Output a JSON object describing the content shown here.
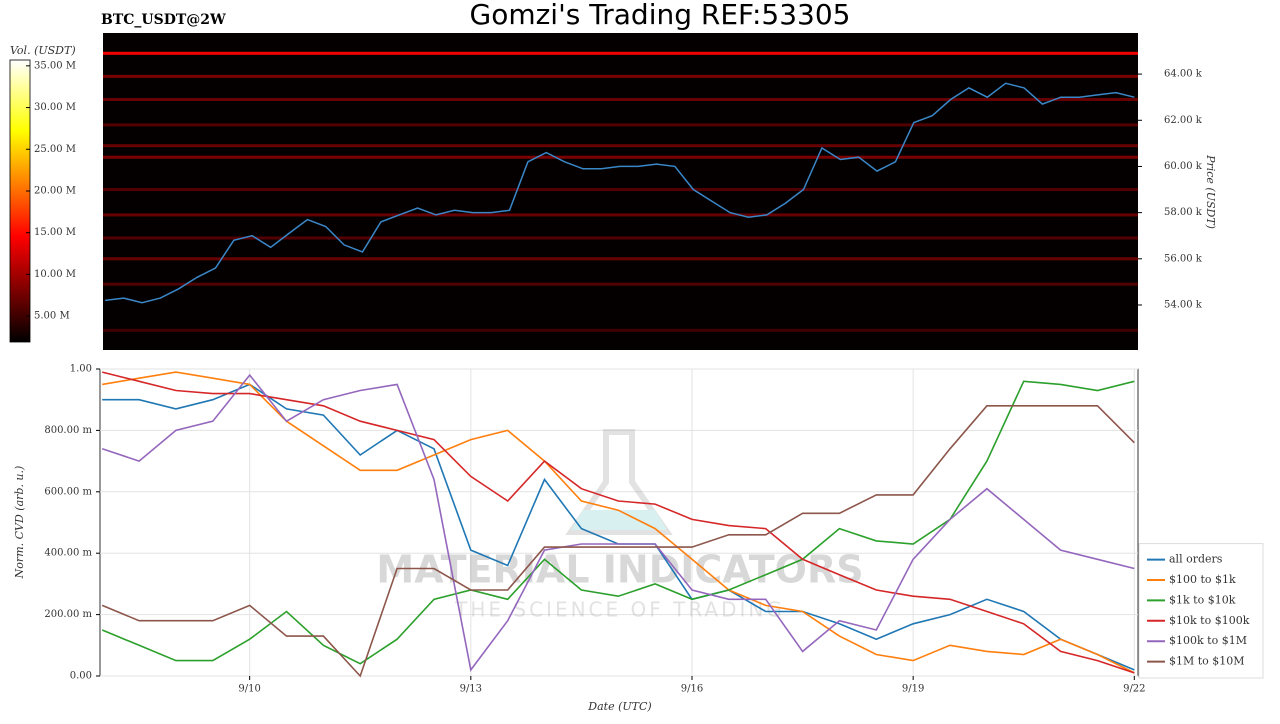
{
  "chart_data": [
    {
      "type": "heatmap",
      "title": "Gomzi's Trading REF:53305",
      "subtitle": "BTC_USDT@2W",
      "y_label": "Price (USDT)",
      "x": [
        8.0,
        8.25,
        8.5,
        8.75,
        9.0,
        9.25,
        9.5,
        9.75,
        10.0,
        10.25,
        10.5,
        10.75,
        11.0,
        11.25,
        11.5,
        11.75,
        12.0,
        12.25,
        12.5,
        12.75,
        13.0,
        13.25,
        13.5,
        13.75,
        14.0,
        14.25,
        14.5,
        14.75,
        15.0,
        15.25,
        15.5,
        15.75,
        16.0,
        16.25,
        16.5,
        16.75,
        17.0,
        17.25,
        17.5,
        17.75,
        18.0,
        18.25,
        18.5,
        18.75,
        19.0,
        19.25,
        19.5,
        19.75,
        20.0,
        20.25,
        20.5,
        20.75,
        21.0,
        21.25,
        21.5,
        21.75,
        22.0
      ],
      "xlim": [
        7.97,
        22.05
      ],
      "price": {
        "color": "#3a87c8",
        "values": [
          54200,
          54300,
          54100,
          54300,
          54700,
          55200,
          55600,
          56800,
          57000,
          56500,
          57100,
          57700,
          57400,
          56600,
          56300,
          57600,
          57900,
          58200,
          57900,
          58100,
          58000,
          58000,
          58100,
          60200,
          60600,
          60200,
          59900,
          59900,
          60000,
          60000,
          60100,
          60000,
          59000,
          58500,
          58000,
          57800,
          57900,
          58400,
          59000,
          60800,
          60300,
          60400,
          59800,
          60200,
          61900,
          62200,
          62900,
          63400,
          63000,
          63600,
          63400,
          62700,
          63000,
          63000,
          63100,
          63200,
          63000
        ]
      },
      "ylim": [
        52050,
        65780
      ],
      "yticks": [
        {
          "value": 54000,
          "label": "54.00 k"
        },
        {
          "value": 56000,
          "label": "56.00 k"
        },
        {
          "value": 58000,
          "label": "58.00 k"
        },
        {
          "value": 60000,
          "label": "60.00 k"
        },
        {
          "value": 62000,
          "label": "62.00 k"
        },
        {
          "value": 64000,
          "label": "64.00 k"
        }
      ],
      "levels": [
        64900,
        63900,
        62900,
        61800,
        60900,
        60400,
        59000,
        57900,
        56900,
        56000,
        54900,
        52900
      ],
      "volumes": [
        14000000,
        8000000,
        7000000,
        6000000,
        7000000,
        8000000,
        6000000,
        7000000,
        6000000,
        7000000,
        6000000,
        5000000
      ],
      "colorbar": {
        "label": "Vol. (USDT)",
        "lim": [
          1900000,
          35700000
        ],
        "ticks": [
          {
            "value": 5000000,
            "label": "5.00 M"
          },
          {
            "value": 10000000,
            "label": "10.00 M"
          },
          {
            "value": 15000000,
            "label": "15.00 M"
          },
          {
            "value": 20000000,
            "label": "20.00 M"
          },
          {
            "value": 25000000,
            "label": "25.00 M"
          },
          {
            "value": 30000000,
            "label": "30.00 M"
          },
          {
            "value": 35000000,
            "label": "35.00 M"
          }
        ]
      }
    },
    {
      "type": "line",
      "x_label": "Date (UTC)",
      "y_label": "Norm. CVD (arb. u.)",
      "x": [
        8.0,
        8.5,
        9.0,
        9.5,
        10.0,
        10.5,
        11.0,
        11.5,
        12.0,
        12.5,
        13.0,
        13.5,
        14.0,
        14.5,
        15.0,
        15.5,
        16.0,
        16.5,
        17.0,
        17.5,
        18.0,
        18.5,
        19.0,
        19.5,
        20.0,
        20.5,
        21.0,
        21.5,
        22.0
      ],
      "xlim": [
        7.97,
        22.05
      ],
      "xticks": [
        {
          "value": 10,
          "label": "9/10"
        },
        {
          "value": 13,
          "label": "9/13"
        },
        {
          "value": 16,
          "label": "9/16"
        },
        {
          "value": 19,
          "label": "9/19"
        },
        {
          "value": 22,
          "label": "9/22"
        }
      ],
      "ylim": [
        0,
        1
      ],
      "yticks": [
        {
          "value": 0,
          "label": "0.00"
        },
        {
          "value": 0.2,
          "label": "200.00 m"
        },
        {
          "value": 0.4,
          "label": "400.00 m"
        },
        {
          "value": 0.6,
          "label": "600.00 m"
        },
        {
          "value": 0.8,
          "label": "800.00 m"
        },
        {
          "value": 1,
          "label": "1.00"
        }
      ],
      "grid": true,
      "legend": "lower right",
      "watermark": {
        "title": "MATERIAL INDICATORS",
        "subtitle": "THE SCIENCE OF TRADING"
      },
      "series": [
        {
          "name": "all orders",
          "color": "#1f77b4",
          "values": [
            0.9,
            0.9,
            0.87,
            0.9,
            0.95,
            0.87,
            0.85,
            0.72,
            0.8,
            0.74,
            0.41,
            0.36,
            0.64,
            0.48,
            0.43,
            0.43,
            0.25,
            0.28,
            0.21,
            0.21,
            0.17,
            0.12,
            0.17,
            0.2,
            0.25,
            0.21,
            0.12,
            0.07,
            0.02
          ]
        },
        {
          "name": "$100 to $1k",
          "color": "#ff7f0e",
          "values": [
            0.95,
            0.97,
            0.99,
            0.97,
            0.95,
            0.83,
            0.75,
            0.67,
            0.67,
            0.72,
            0.77,
            0.8,
            0.7,
            0.57,
            0.54,
            0.48,
            0.38,
            0.28,
            0.23,
            0.21,
            0.13,
            0.07,
            0.05,
            0.1,
            0.08,
            0.07,
            0.12,
            0.07,
            0.01
          ]
        },
        {
          "name": "$1k to $10k",
          "color": "#2ca02c",
          "values": [
            0.15,
            0.1,
            0.05,
            0.05,
            0.12,
            0.21,
            0.1,
            0.04,
            0.12,
            0.25,
            0.28,
            0.25,
            0.38,
            0.28,
            0.26,
            0.3,
            0.25,
            0.28,
            0.33,
            0.38,
            0.48,
            0.44,
            0.43,
            0.51,
            0.7,
            0.96,
            0.95,
            0.93,
            0.96
          ]
        },
        {
          "name": "$10k to $100k",
          "color": "#d62728",
          "values": [
            0.99,
            0.96,
            0.93,
            0.92,
            0.92,
            0.9,
            0.88,
            0.83,
            0.8,
            0.77,
            0.65,
            0.57,
            0.7,
            0.61,
            0.57,
            0.56,
            0.51,
            0.49,
            0.48,
            0.38,
            0.33,
            0.28,
            0.26,
            0.25,
            0.21,
            0.17,
            0.08,
            0.05,
            0.01
          ]
        },
        {
          "name": "$100k to $1M",
          "color": "#9467bd",
          "values": [
            0.74,
            0.7,
            0.8,
            0.83,
            0.98,
            0.83,
            0.9,
            0.93,
            0.95,
            0.64,
            0.02,
            0.18,
            0.41,
            0.43,
            0.43,
            0.43,
            0.28,
            0.25,
            0.25,
            0.08,
            0.18,
            0.15,
            0.38,
            0.51,
            0.61,
            0.51,
            0.41,
            0.38,
            0.35
          ]
        },
        {
          "name": "$1M to $10M",
          "color": "#8c564b",
          "values": [
            0.23,
            0.18,
            0.18,
            0.18,
            0.23,
            0.13,
            0.13,
            0,
            0.35,
            0.35,
            0.28,
            0.28,
            0.42,
            0.42,
            0.42,
            0.42,
            0.42,
            0.46,
            0.46,
            0.53,
            0.53,
            0.59,
            0.59,
            0.74,
            0.88,
            0.88,
            0.88,
            0.88,
            0.76
          ]
        }
      ]
    }
  ]
}
